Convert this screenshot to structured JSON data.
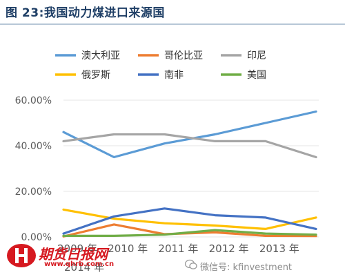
{
  "figure": {
    "title": "图 23:我国动力煤进口来源国"
  },
  "watermark": {
    "name": "期货日报网",
    "url": "www.qhrb.com.cn",
    "wechat": "微信号: kfinvestment"
  },
  "chart_data": {
    "type": "line",
    "title": "",
    "xlabel": "",
    "ylabel": "",
    "categories": [
      "2009 年",
      "2010 年",
      "2011 年",
      "2012 年",
      "2013 年",
      "2014 年"
    ],
    "ylim": [
      0,
      0.6
    ],
    "yticks": [
      "0.00%",
      "20.00%",
      "40.00%",
      "60.00%"
    ],
    "legend_position": "top",
    "series": [
      {
        "name": "澳大利亚",
        "color": "#5b9bd5",
        "values": [
          0.46,
          0.35,
          0.41,
          0.45,
          0.5,
          0.55
        ]
      },
      {
        "name": "哥伦比亚",
        "color": "#ed7d31",
        "values": [
          0.002,
          0.055,
          0.012,
          0.02,
          0.005,
          0.004
        ]
      },
      {
        "name": "印尼",
        "color": "#a5a5a5",
        "values": [
          0.42,
          0.45,
          0.45,
          0.42,
          0.42,
          0.35
        ]
      },
      {
        "name": "俄罗斯",
        "color": "#ffc000",
        "values": [
          0.12,
          0.08,
          0.06,
          0.05,
          0.035,
          0.085
        ]
      },
      {
        "name": "南非",
        "color": "#4472c4",
        "values": [
          0.015,
          0.09,
          0.125,
          0.095,
          0.085,
          0.035
        ]
      },
      {
        "name": "美国",
        "color": "#70ad47",
        "values": [
          0.005,
          0.005,
          0.01,
          0.03,
          0.015,
          0.01
        ]
      }
    ]
  }
}
